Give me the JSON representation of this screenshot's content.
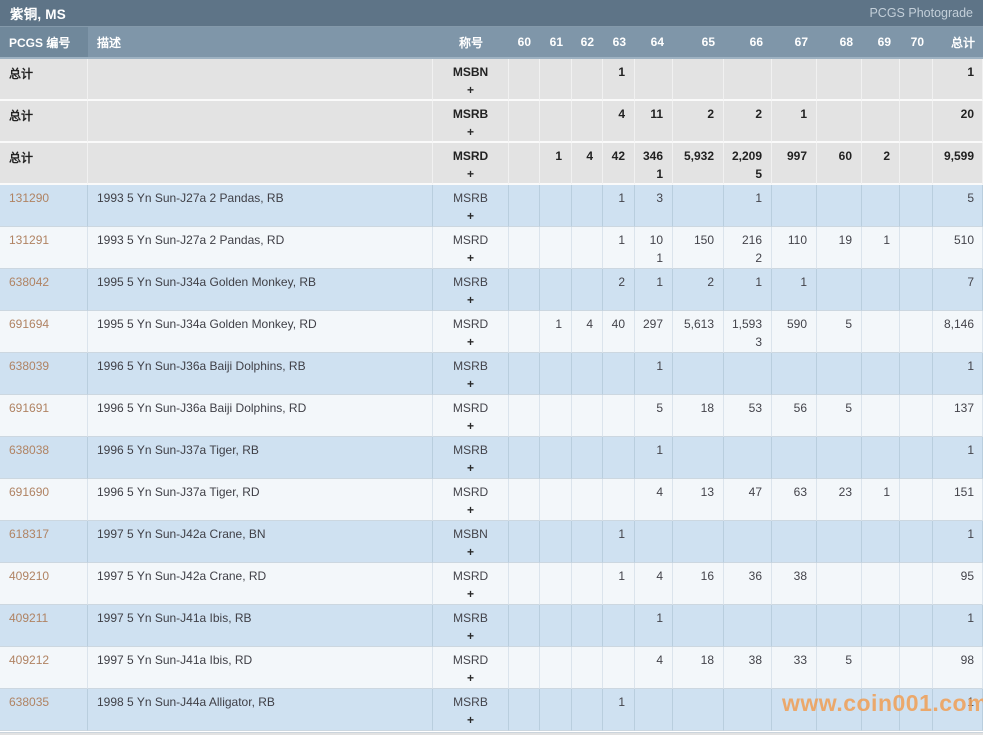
{
  "header": {
    "title": "紫铜, MS",
    "photograde_label": "PCGS Photograde"
  },
  "watermark": "www.coin001.com",
  "table": {
    "columns": {
      "pcgs_no": "PCGS 编号",
      "description": "描述",
      "designation": "称号",
      "grades": [
        "60",
        "61",
        "62",
        "63",
        "64",
        "65",
        "66",
        "67",
        "68",
        "69",
        "70"
      ],
      "total": "总计"
    },
    "totals_label": "总计",
    "plus_symbol": "+",
    "total_rows": [
      {
        "designation": "MSBN",
        "grades": [
          "",
          "",
          "",
          "1",
          "",
          "",
          "",
          "",
          "",
          "",
          ""
        ],
        "total": "1"
      },
      {
        "designation": "MSRB",
        "grades": [
          "",
          "",
          "",
          "4",
          "11",
          "2",
          "2",
          "1",
          "",
          "",
          ""
        ],
        "total": "20"
      },
      {
        "designation": "MSRD",
        "grades": [
          "",
          "1",
          "4",
          "42",
          "346",
          "5,932",
          "2,209",
          "997",
          "60",
          "2",
          ""
        ],
        "plus": [
          "",
          "",
          "",
          "",
          "1",
          "",
          "5",
          "",
          "",
          "",
          ""
        ],
        "total": "9,599"
      }
    ],
    "rows": [
      {
        "pcgs_no": "131290",
        "description": "1993 5 Yn Sun-J27a 2 Pandas, RB",
        "designation": "MSRB",
        "grades": [
          "",
          "",
          "",
          "1",
          "3",
          "",
          "1",
          "",
          "",
          "",
          ""
        ],
        "total": "5"
      },
      {
        "pcgs_no": "131291",
        "description": "1993 5 Yn Sun-J27a 2 Pandas, RD",
        "designation": "MSRD",
        "grades": [
          "",
          "",
          "",
          "1",
          "10",
          "150",
          "216",
          "110",
          "19",
          "1",
          ""
        ],
        "plus": [
          "",
          "",
          "",
          "",
          "1",
          "",
          "2",
          "",
          "",
          "",
          ""
        ],
        "total": "510"
      },
      {
        "pcgs_no": "638042",
        "description": "1995 5 Yn Sun-J34a Golden Monkey, RB",
        "designation": "MSRB",
        "grades": [
          "",
          "",
          "",
          "2",
          "1",
          "2",
          "1",
          "1",
          "",
          "",
          ""
        ],
        "total": "7"
      },
      {
        "pcgs_no": "691694",
        "description": "1995 5 Yn Sun-J34a Golden Monkey, RD",
        "designation": "MSRD",
        "grades": [
          "",
          "1",
          "4",
          "40",
          "297",
          "5,613",
          "1,593",
          "590",
          "5",
          "",
          ""
        ],
        "plus": [
          "",
          "",
          "",
          "",
          "",
          "",
          "3",
          "",
          "",
          "",
          ""
        ],
        "total": "8,146"
      },
      {
        "pcgs_no": "638039",
        "description": "1996 5 Yn Sun-J36a Baiji Dolphins, RB",
        "designation": "MSRB",
        "grades": [
          "",
          "",
          "",
          "",
          "1",
          "",
          "",
          "",
          "",
          "",
          ""
        ],
        "total": "1"
      },
      {
        "pcgs_no": "691691",
        "description": "1996 5 Yn Sun-J36a Baiji Dolphins, RD",
        "designation": "MSRD",
        "grades": [
          "",
          "",
          "",
          "",
          "5",
          "18",
          "53",
          "56",
          "5",
          "",
          ""
        ],
        "total": "137"
      },
      {
        "pcgs_no": "638038",
        "description": "1996 5 Yn Sun-J37a Tiger, RB",
        "designation": "MSRB",
        "grades": [
          "",
          "",
          "",
          "",
          "1",
          "",
          "",
          "",
          "",
          "",
          ""
        ],
        "total": "1"
      },
      {
        "pcgs_no": "691690",
        "description": "1996 5 Yn Sun-J37a Tiger, RD",
        "designation": "MSRD",
        "grades": [
          "",
          "",
          "",
          "",
          "4",
          "13",
          "47",
          "63",
          "23",
          "1",
          ""
        ],
        "total": "151"
      },
      {
        "pcgs_no": "618317",
        "description": "1997 5 Yn Sun-J42a Crane, BN",
        "designation": "MSBN",
        "grades": [
          "",
          "",
          "",
          "1",
          "",
          "",
          "",
          "",
          "",
          "",
          ""
        ],
        "total": "1"
      },
      {
        "pcgs_no": "409210",
        "description": "1997 5 Yn Sun-J42a Crane, RD",
        "designation": "MSRD",
        "grades": [
          "",
          "",
          "",
          "1",
          "4",
          "16",
          "36",
          "38",
          "",
          "",
          ""
        ],
        "total": "95"
      },
      {
        "pcgs_no": "409211",
        "description": "1997 5 Yn Sun-J41a Ibis, RB",
        "designation": "MSRB",
        "grades": [
          "",
          "",
          "",
          "",
          "1",
          "",
          "",
          "",
          "",
          "",
          ""
        ],
        "total": "1"
      },
      {
        "pcgs_no": "409212",
        "description": "1997 5 Yn Sun-J41a Ibis, RD",
        "designation": "MSRD",
        "grades": [
          "",
          "",
          "",
          "",
          "4",
          "18",
          "38",
          "33",
          "5",
          "",
          ""
        ],
        "total": "98"
      },
      {
        "pcgs_no": "638035",
        "description": "1998 5 Yn Sun-J44a Alligator, RB",
        "designation": "MSRB",
        "grades": [
          "",
          "",
          "",
          "1",
          "",
          "",
          "",
          "",
          "",
          "",
          ""
        ],
        "total": "1"
      }
    ]
  }
}
